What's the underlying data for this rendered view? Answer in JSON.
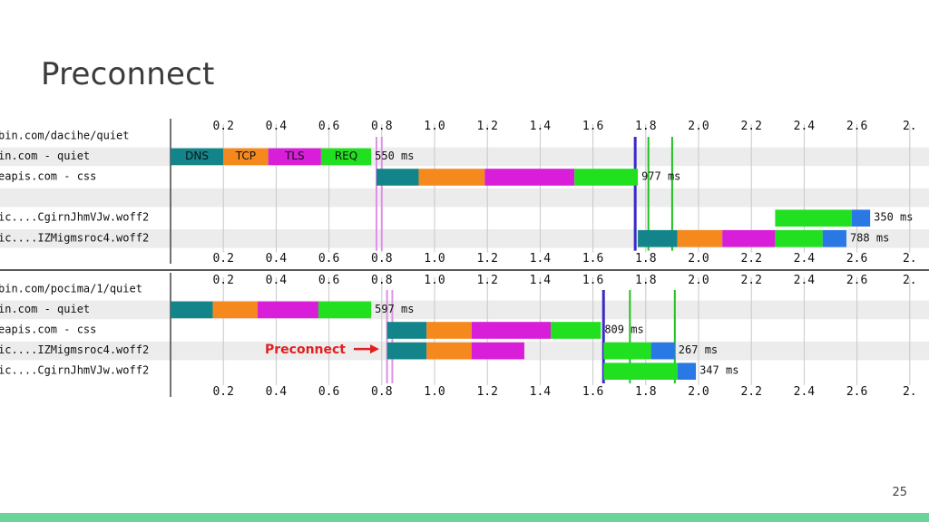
{
  "slide": {
    "title": "Preconnect",
    "page_number": "25"
  },
  "colors": {
    "dns": "#13858a",
    "tcp": "#f5891e",
    "tls": "#d81ed8",
    "req": "#20e020",
    "download": "#2a78e4",
    "start_render": "#e090e8",
    "dom_content": "#3a2ac8",
    "onload": "#20c020",
    "row_stripe": "#ececec",
    "annotation": "#e02020"
  },
  "waterfalls": [
    {
      "ticks": [
        "0.2",
        "0.4",
        "0.6",
        "0.8",
        "1.0",
        "1.2",
        "1.4",
        "1.6",
        "1.8",
        "2.0",
        "2.2",
        "2.4",
        "2.6",
        "2."
      ],
      "rows": [
        {
          "label": "bin.com/dacihe/quiet",
          "segments": [],
          "duration": ""
        },
        {
          "label": "in.com - quiet",
          "segments": [
            {
              "phase": "dns",
              "start": 0.0,
              "end": 0.2,
              "text": "DNS"
            },
            {
              "phase": "tcp",
              "start": 0.2,
              "end": 0.37,
              "text": "TCP"
            },
            {
              "phase": "tls",
              "start": 0.37,
              "end": 0.57,
              "text": "TLS"
            },
            {
              "phase": "req",
              "start": 0.57,
              "end": 0.76,
              "text": "REQ"
            }
          ],
          "duration": "550 ms"
        },
        {
          "label": "eapis.com - css",
          "segments": [
            {
              "phase": "dns",
              "start": 0.78,
              "end": 0.94
            },
            {
              "phase": "tcp",
              "start": 0.94,
              "end": 1.19
            },
            {
              "phase": "tls",
              "start": 1.19,
              "end": 1.53
            },
            {
              "phase": "req",
              "start": 1.53,
              "end": 1.77
            }
          ],
          "duration": "977 ms"
        },
        {
          "label": "",
          "segments": [],
          "duration": ""
        },
        {
          "label": "ic....CgirnJhmVJw.woff2",
          "segments": [
            {
              "phase": "req",
              "start": 2.29,
              "end": 2.58
            },
            {
              "phase": "download",
              "start": 2.58,
              "end": 2.65
            }
          ],
          "duration": "350 ms"
        },
        {
          "label": "ic....IZMigmsroc4.woff2",
          "segments": [
            {
              "phase": "dns",
              "start": 1.77,
              "end": 1.92
            },
            {
              "phase": "tcp",
              "start": 1.92,
              "end": 2.09
            },
            {
              "phase": "tls",
              "start": 2.09,
              "end": 2.29
            },
            {
              "phase": "req",
              "start": 2.29,
              "end": 2.47
            },
            {
              "phase": "download",
              "start": 2.47,
              "end": 2.56
            }
          ],
          "duration": "788 ms"
        }
      ],
      "markers": [
        {
          "kind": "start_render",
          "at": 0.78
        },
        {
          "kind": "start_render",
          "at": 0.8
        },
        {
          "kind": "dom_content",
          "at": 1.76
        },
        {
          "kind": "onload",
          "at": 1.81
        },
        {
          "kind": "onload",
          "at": 1.9
        }
      ]
    },
    {
      "ticks": [
        "0.2",
        "0.4",
        "0.6",
        "0.8",
        "1.0",
        "1.2",
        "1.4",
        "1.6",
        "1.8",
        "2.0",
        "2.2",
        "2.4",
        "2.6",
        "2."
      ],
      "rows": [
        {
          "label": "bin.com/pocima/1/quiet",
          "segments": [],
          "duration": ""
        },
        {
          "label": "in.com - quiet",
          "segments": [
            {
              "phase": "dns",
              "start": 0.0,
              "end": 0.16
            },
            {
              "phase": "tcp",
              "start": 0.16,
              "end": 0.33
            },
            {
              "phase": "tls",
              "start": 0.33,
              "end": 0.56
            },
            {
              "phase": "req",
              "start": 0.56,
              "end": 0.76
            }
          ],
          "duration": "597 ms"
        },
        {
          "label": "eapis.com - css",
          "segments": [
            {
              "phase": "dns",
              "start": 0.82,
              "end": 0.97
            },
            {
              "phase": "tcp",
              "start": 0.97,
              "end": 1.14
            },
            {
              "phase": "tls",
              "start": 1.14,
              "end": 1.44
            },
            {
              "phase": "req",
              "start": 1.44,
              "end": 1.63
            }
          ],
          "duration": "809 ms"
        },
        {
          "label": "ic....IZMigmsroc4.woff2",
          "segments": [
            {
              "phase": "dns",
              "start": 0.82,
              "end": 0.97
            },
            {
              "phase": "tcp",
              "start": 0.97,
              "end": 1.14
            },
            {
              "phase": "tls",
              "start": 1.14,
              "end": 1.34
            },
            {
              "phase": "req",
              "start": 1.64,
              "end": 1.82
            },
            {
              "phase": "download",
              "start": 1.82,
              "end": 1.91
            }
          ],
          "duration": "267 ms"
        },
        {
          "label": "ic....CgirnJhmVJw.woff2",
          "segments": [
            {
              "phase": "req",
              "start": 1.64,
              "end": 1.92
            },
            {
              "phase": "download",
              "start": 1.92,
              "end": 1.99
            }
          ],
          "duration": "347 ms"
        }
      ],
      "markers": [
        {
          "kind": "start_render",
          "at": 0.82
        },
        {
          "kind": "start_render",
          "at": 0.84
        },
        {
          "kind": "dom_content",
          "at": 1.64
        },
        {
          "kind": "onload",
          "at": 1.74
        },
        {
          "kind": "onload",
          "at": 1.91
        }
      ],
      "annotation": {
        "text": "Preconnect",
        "row": 3
      }
    }
  ]
}
